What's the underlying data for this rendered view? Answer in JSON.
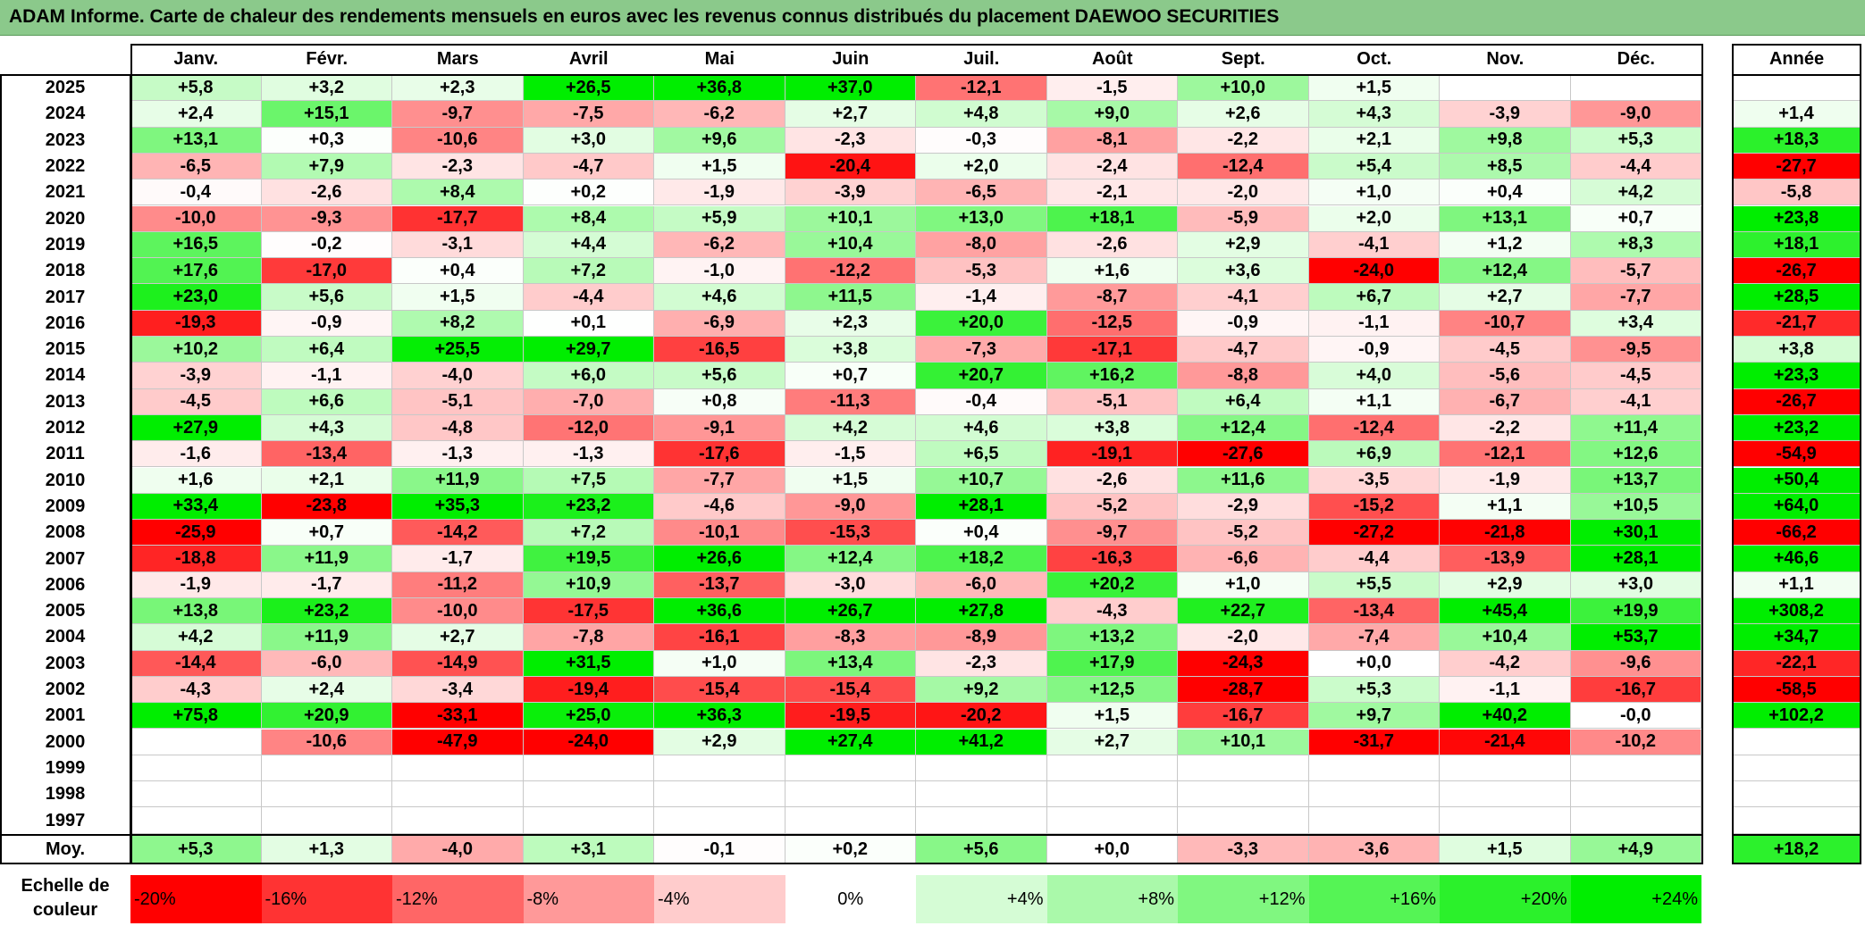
{
  "title": "ADAM Informe. Carte de chaleur des rendements mensuels en euros avec les revenus connus distribués du placement DAEWOO SECURITIES",
  "chart_data": {
    "type": "heatmap",
    "months": [
      "Janv.",
      "Févr.",
      "Mars",
      "Avril",
      "Mai",
      "Juin",
      "Juil.",
      "Août",
      "Sept.",
      "Oct.",
      "Nov.",
      "Déc."
    ],
    "year_header": "Année",
    "rows": [
      {
        "year": "2025",
        "values": [
          "+5,8",
          "+3,2",
          "+2,3",
          "+26,5",
          "+36,8",
          "+37,0",
          "-12,1",
          "-1,5",
          "+10,0",
          "+1,5",
          "",
          ""
        ],
        "annual": ""
      },
      {
        "year": "2024",
        "values": [
          "+2,4",
          "+15,1",
          "-9,7",
          "-7,5",
          "-6,2",
          "+2,7",
          "+4,8",
          "+9,0",
          "+2,6",
          "+4,3",
          "-3,9",
          "-9,0"
        ],
        "annual": "+1,4"
      },
      {
        "year": "2023",
        "values": [
          "+13,1",
          "+0,3",
          "-10,6",
          "+3,0",
          "+9,6",
          "-2,3",
          "-0,3",
          "-8,1",
          "-2,2",
          "+2,1",
          "+9,8",
          "+5,3"
        ],
        "annual": "+18,3"
      },
      {
        "year": "2022",
        "values": [
          "-6,5",
          "+7,9",
          "-2,3",
          "-4,7",
          "+1,5",
          "-20,4",
          "+2,0",
          "-2,4",
          "-12,4",
          "+5,4",
          "+8,5",
          "-4,4"
        ],
        "annual": "-27,7"
      },
      {
        "year": "2021",
        "values": [
          "-0,4",
          "-2,6",
          "+8,4",
          "+0,2",
          "-1,9",
          "-3,9",
          "-6,5",
          "-2,1",
          "-2,0",
          "+1,0",
          "+0,4",
          "+4,2"
        ],
        "annual": "-5,8"
      },
      {
        "year": "2020",
        "values": [
          "-10,0",
          "-9,3",
          "-17,7",
          "+8,4",
          "+5,9",
          "+10,1",
          "+13,0",
          "+18,1",
          "-5,9",
          "+2,0",
          "+13,1",
          "+0,7"
        ],
        "annual": "+23,8"
      },
      {
        "year": "2019",
        "values": [
          "+16,5",
          "-0,2",
          "-3,1",
          "+4,4",
          "-6,2",
          "+10,4",
          "-8,0",
          "-2,6",
          "+2,9",
          "-4,1",
          "+1,2",
          "+8,3"
        ],
        "annual": "+18,1"
      },
      {
        "year": "2018",
        "values": [
          "+17,6",
          "-17,0",
          "+0,4",
          "+7,2",
          "-1,0",
          "-12,2",
          "-5,3",
          "+1,6",
          "+3,6",
          "-24,0",
          "+12,4",
          "-5,7"
        ],
        "annual": "-26,7"
      },
      {
        "year": "2017",
        "values": [
          "+23,0",
          "+5,6",
          "+1,5",
          "-4,4",
          "+4,6",
          "+11,5",
          "-1,4",
          "-8,7",
          "-4,1",
          "+6,7",
          "+2,7",
          "-7,7"
        ],
        "annual": "+28,5"
      },
      {
        "year": "2016",
        "values": [
          "-19,3",
          "-0,9",
          "+8,2",
          "+0,1",
          "-6,9",
          "+2,3",
          "+20,0",
          "-12,5",
          "-0,9",
          "-1,1",
          "-10,7",
          "+3,4"
        ],
        "annual": "-21,7"
      },
      {
        "year": "2015",
        "values": [
          "+10,2",
          "+6,4",
          "+25,5",
          "+29,7",
          "-16,5",
          "+3,8",
          "-7,3",
          "-17,1",
          "-4,7",
          "-0,9",
          "-4,5",
          "-9,5"
        ],
        "annual": "+3,8"
      },
      {
        "year": "2014",
        "values": [
          "-3,9",
          "-1,1",
          "-4,0",
          "+6,0",
          "+5,6",
          "+0,7",
          "+20,7",
          "+16,2",
          "-8,8",
          "+4,0",
          "-5,6",
          "-4,5"
        ],
        "annual": "+23,3"
      },
      {
        "year": "2013",
        "values": [
          "-4,5",
          "+6,6",
          "-5,1",
          "-7,0",
          "+0,8",
          "-11,3",
          "-0,4",
          "-5,1",
          "+6,4",
          "+1,1",
          "-6,7",
          "-4,1"
        ],
        "annual": "-26,7"
      },
      {
        "year": "2012",
        "values": [
          "+27,9",
          "+4,3",
          "-4,8",
          "-12,0",
          "-9,1",
          "+4,2",
          "+4,6",
          "+3,8",
          "+12,4",
          "-12,4",
          "-2,2",
          "+11,4"
        ],
        "annual": "+23,2"
      },
      {
        "year": "2011",
        "values": [
          "-1,6",
          "-13,4",
          "-1,3",
          "-1,3",
          "-17,6",
          "-1,5",
          "+6,5",
          "-19,1",
          "-27,6",
          "+6,9",
          "-12,1",
          "+12,6"
        ],
        "annual": "-54,9"
      },
      {
        "year": "2010",
        "values": [
          "+1,6",
          "+2,1",
          "+11,9",
          "+7,5",
          "-7,7",
          "+1,5",
          "+10,7",
          "-2,6",
          "+11,6",
          "-3,5",
          "-1,9",
          "+13,7"
        ],
        "annual": "+50,4"
      },
      {
        "year": "2009",
        "values": [
          "+33,4",
          "-23,8",
          "+35,3",
          "+23,2",
          "-4,6",
          "-9,0",
          "+28,1",
          "-5,2",
          "-2,9",
          "-15,2",
          "+1,1",
          "+10,5"
        ],
        "annual": "+64,0"
      },
      {
        "year": "2008",
        "values": [
          "-25,9",
          "+0,7",
          "-14,2",
          "+7,2",
          "-10,1",
          "-15,3",
          "+0,4",
          "-9,7",
          "-5,2",
          "-27,2",
          "-21,8",
          "+30,1"
        ],
        "annual": "-66,2"
      },
      {
        "year": "2007",
        "values": [
          "-18,8",
          "+11,9",
          "-1,7",
          "+19,5",
          "+26,6",
          "+12,4",
          "+18,2",
          "-16,3",
          "-6,6",
          "-4,4",
          "-13,9",
          "+28,1"
        ],
        "annual": "+46,6"
      },
      {
        "year": "2006",
        "values": [
          "-1,9",
          "-1,7",
          "-11,2",
          "+10,9",
          "-13,7",
          "-3,0",
          "-6,0",
          "+20,2",
          "+1,0",
          "+5,5",
          "+2,9",
          "+3,0"
        ],
        "annual": "+1,1"
      },
      {
        "year": "2005",
        "values": [
          "+13,8",
          "+23,2",
          "-10,0",
          "-17,5",
          "+36,6",
          "+26,7",
          "+27,8",
          "-4,3",
          "+22,7",
          "-13,4",
          "+45,4",
          "+19,9"
        ],
        "annual": "+308,2"
      },
      {
        "year": "2004",
        "values": [
          "+4,2",
          "+11,9",
          "+2,7",
          "-7,8",
          "-16,1",
          "-8,3",
          "-8,9",
          "+13,2",
          "-2,0",
          "-7,4",
          "+10,4",
          "+53,7"
        ],
        "annual": "+34,7"
      },
      {
        "year": "2003",
        "values": [
          "-14,4",
          "-6,0",
          "-14,9",
          "+31,5",
          "+1,0",
          "+13,4",
          "-2,3",
          "+17,9",
          "-24,3",
          "+0,0",
          "-4,2",
          "-9,6"
        ],
        "annual": "-22,1"
      },
      {
        "year": "2002",
        "values": [
          "-4,3",
          "+2,4",
          "-3,4",
          "-19,4",
          "-15,4",
          "-15,4",
          "+9,2",
          "+12,5",
          "-28,7",
          "+5,3",
          "-1,1",
          "-16,7"
        ],
        "annual": "-58,5"
      },
      {
        "year": "2001",
        "values": [
          "+75,8",
          "+20,9",
          "-33,1",
          "+25,0",
          "+36,3",
          "-19,5",
          "-20,2",
          "+1,5",
          "-16,7",
          "+9,7",
          "+40,2",
          "-0,0"
        ],
        "annual": "+102,2"
      },
      {
        "year": "2000",
        "values": [
          "",
          "-10,6",
          "-47,9",
          "-24,0",
          "+2,9",
          "+27,4",
          "+41,2",
          "+2,7",
          "+10,1",
          "-31,7",
          "-21,4",
          "-10,2"
        ],
        "annual": ""
      },
      {
        "year": "1999",
        "values": [
          "",
          "",
          "",
          "",
          "",
          "",
          "",
          "",
          "",
          "",
          "",
          ""
        ],
        "annual": ""
      },
      {
        "year": "1998",
        "values": [
          "",
          "",
          "",
          "",
          "",
          "",
          "",
          "",
          "",
          "",
          "",
          ""
        ],
        "annual": ""
      },
      {
        "year": "1997",
        "values": [
          "",
          "",
          "",
          "",
          "",
          "",
          "",
          "",
          "",
          "",
          "",
          ""
        ],
        "annual": ""
      }
    ],
    "average": {
      "label": "Moy.",
      "values": [
        "+5,3",
        "+1,3",
        "-4,0",
        "+3,1",
        "-0,1",
        "+0,2",
        "+5,6",
        "+0,0",
        "-3,3",
        "-3,6",
        "+1,5",
        "+4,9"
      ],
      "annual": "+18,2"
    },
    "color_scale": {
      "label_line1": "Echelle de",
      "label_line2": "couleur",
      "stops": [
        "-20%",
        "-16%",
        "-12%",
        "-8%",
        "-4%",
        "0%",
        "+4%",
        "+8%",
        "+12%",
        "+16%",
        "+20%",
        "+24%"
      ]
    },
    "colors": {
      "negative_max": "#ff0000",
      "neutral": "#ffffff",
      "positive_max": "#00ee00",
      "title_bar": "#8bc98b"
    }
  }
}
